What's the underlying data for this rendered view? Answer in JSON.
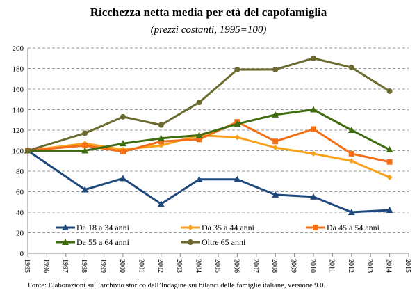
{
  "chart_data": {
    "type": "line",
    "title": "Ricchezza netta media per età del capofamiglia",
    "subtitle": "(prezzi costanti, 1995=100)",
    "xlabel": "",
    "ylabel": "",
    "xlim": [
      1995,
      2015
    ],
    "ylim": [
      0,
      200
    ],
    "x_ticks": [
      1995,
      1996,
      1997,
      1998,
      1999,
      2000,
      2001,
      2002,
      2003,
      2004,
      2005,
      2006,
      2007,
      2008,
      2009,
      2010,
      2011,
      2012,
      2013,
      2014,
      2015
    ],
    "y_ticks": [
      0,
      20,
      40,
      60,
      80,
      100,
      120,
      140,
      160,
      180,
      200
    ],
    "grid": "horizontal dashed",
    "legend_position": "bottom-inside",
    "x": [
      1995,
      1998,
      2000,
      2002,
      2004,
      2006,
      2008,
      2010,
      2012,
      2014
    ],
    "series": [
      {
        "name": "Da 18 a 34 anni",
        "color": "#1f497d",
        "marker": "triangle",
        "values": [
          100,
          62,
          73,
          48,
          72,
          72,
          57,
          55,
          40,
          42
        ]
      },
      {
        "name": "Da 35 a 44 anni",
        "color": "#f9a11b",
        "marker": "diamond",
        "values": [
          100,
          107,
          101,
          105,
          115,
          113,
          103,
          97,
          90,
          74
        ]
      },
      {
        "name": "Da 45 a 54 anni",
        "color": "#f36f17",
        "marker": "square",
        "values": [
          100,
          105,
          99,
          109,
          111,
          128,
          109,
          121,
          97,
          89
        ]
      },
      {
        "name": "Da 55 a 64 anni",
        "color": "#3f6c0f",
        "marker": "triangle",
        "values": [
          100,
          100,
          107,
          112,
          115,
          126,
          135,
          140,
          120,
          101
        ]
      },
      {
        "name": "Oltre 65 anni",
        "color": "#6b6a2f",
        "marker": "circle",
        "values": [
          100,
          117,
          133,
          125,
          147,
          179,
          179,
          190,
          181,
          158
        ]
      }
    ]
  },
  "source": "Fonte: Elaborazioni sull’archivio storico dell’Indagine sui bilanci delle famiglie italiane, versione 9.0."
}
